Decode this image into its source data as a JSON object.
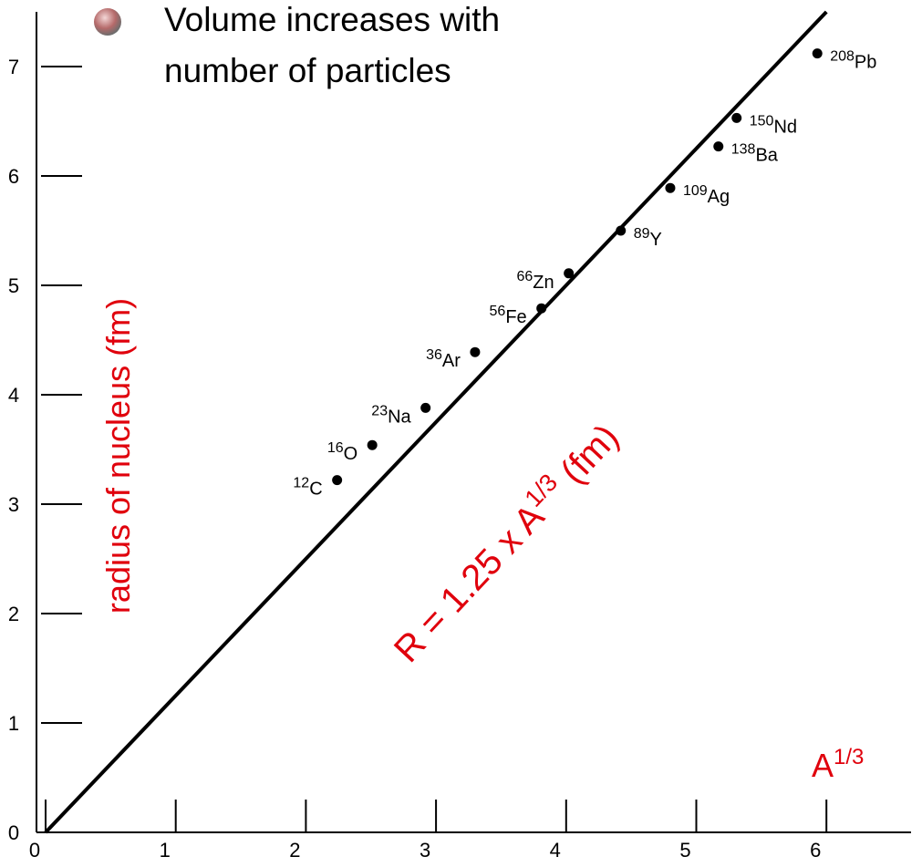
{
  "chart_data": {
    "type": "scatter",
    "title_lines": [
      "Volume increases with",
      "number of particles"
    ],
    "y_label": "radius of nucleus (fm)",
    "x_label": {
      "base": "A",
      "exponent": "1/3"
    },
    "annotation": {
      "before": "R = 1.25 x  A",
      "exponent": "1/3",
      "after": " (fm)"
    },
    "fit_slope": 1.25,
    "x": [
      2.24,
      2.51,
      2.92,
      3.3,
      3.81,
      4.02,
      4.42,
      4.8,
      5.17,
      5.31,
      5.93
    ],
    "values": [
      3.22,
      3.54,
      3.88,
      4.39,
      4.79,
      5.11,
      5.5,
      5.89,
      6.27,
      6.53,
      7.12
    ],
    "point_labels": [
      {
        "mass": "12",
        "symbol": "C"
      },
      {
        "mass": "16",
        "symbol": "O"
      },
      {
        "mass": "23",
        "symbol": "Na"
      },
      {
        "mass": "36",
        "symbol": "Ar"
      },
      {
        "mass": "56",
        "symbol": "Fe"
      },
      {
        "mass": "66",
        "symbol": "Zn"
      },
      {
        "mass": "89",
        "symbol": "Y"
      },
      {
        "mass": "109",
        "symbol": "Ag"
      },
      {
        "mass": "138",
        "symbol": "Ba"
      },
      {
        "mass": "150",
        "symbol": "Nd"
      },
      {
        "mass": "208",
        "symbol": "Pb"
      }
    ],
    "color": "#000000",
    "xlim": [
      0,
      6.65
    ],
    "ylim": [
      0,
      7.5
    ],
    "xticks": [
      0,
      1,
      2,
      3,
      4,
      5,
      6
    ],
    "yticks": [
      0,
      1,
      2,
      3,
      4,
      5,
      6,
      7
    ]
  }
}
